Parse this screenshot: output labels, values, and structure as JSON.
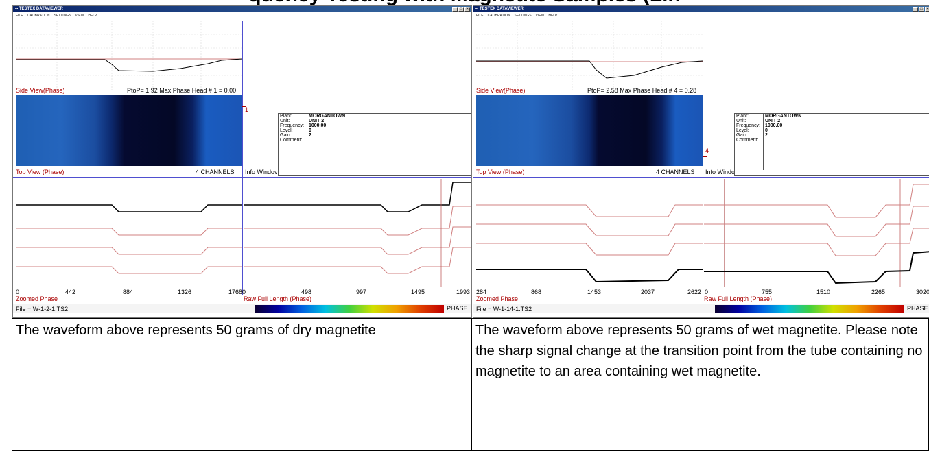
{
  "header": {
    "text": "quency Testing with Magnetite Samples (Lin"
  },
  "windows": [
    {
      "title": "TESTEX DATAVIEWER",
      "menu": [
        "FILE",
        "CALIBRATION",
        "SETTINGS",
        "VIEW",
        "HELP"
      ],
      "side_view_label": "Side View(Phase)",
      "ptop_text": "PtoP= 1.92   Max Phase Head # 1 = 0.00",
      "top_view_label": "Top View (Phase)",
      "channels_text": "4 CHANNELS",
      "info_window_label": "Info Windov",
      "channel_marker": "1",
      "info": {
        "plant_key": "Plant:",
        "plant": "MORGANTOWN",
        "unit_key": "Unit:",
        "unit": "UNIT 2",
        "frequency_key": "Frequency:",
        "frequency": "1000.00",
        "level_key": "Level:",
        "level": "0",
        "gain_key": "Gain:",
        "gain": "2",
        "comment_key": "Comment:",
        "comment": ""
      },
      "zoomed_label": "Zoomed Phase",
      "zoomed_ticks": [
        "0",
        "442",
        "884",
        "1326",
        "1768"
      ],
      "raw_label": "Raw Full Length (Phase)",
      "raw_ticks": [
        "0",
        "498",
        "997",
        "1495",
        "1993"
      ],
      "file_label": "File = W-1-2-1.TS2",
      "phase_label": "PHASE"
    },
    {
      "title": "TESTEX DATAVIEWER",
      "menu": [
        "FILE",
        "CALIBRATION",
        "SETTINGS",
        "VIEW",
        "HELP"
      ],
      "side_view_label": "Side View(Phase)",
      "ptop_text": "PtoP= 2.58   Max Phase Head # 4 = 0.28",
      "top_view_label": "Top View (Phase)",
      "channels_text": "4 CHANNELS",
      "info_window_label": "Info Windov",
      "channel_marker": "4",
      "info": {
        "plant_key": "Plant:",
        "plant": "MORGANTOWN",
        "unit_key": "Unit:",
        "unit": "UNIT 2",
        "frequency_key": "Frequency:",
        "frequency": "1000.00",
        "level_key": "Level:",
        "level": "0",
        "gain_key": "Gain:",
        "gain": "2",
        "comment_key": "Comment:",
        "comment": ""
      },
      "zoomed_label": "Zoomed Phase",
      "zoomed_ticks": [
        "284",
        "868",
        "1453",
        "2037",
        "2622"
      ],
      "raw_label": "Raw Full Length (Phase)",
      "raw_ticks": [
        "0",
        "755",
        "1510",
        "2265",
        "3020"
      ],
      "file_label": "File = W-1-14-1.TS2",
      "phase_label": "PHASE"
    }
  ],
  "captions": [
    "The waveform above represents 50 grams of dry magnetite",
    "The waveform above represents 50 grams of wet magnetite. Please note the sharp signal change at the transition point from the tube containing no magnetite to an area containing wet magnetite."
  ],
  "colors": {
    "window_blue": "#0a246a",
    "grid_purple": "#4f4fd0",
    "trace_red": "#d08080",
    "label_red": "#a00000"
  }
}
